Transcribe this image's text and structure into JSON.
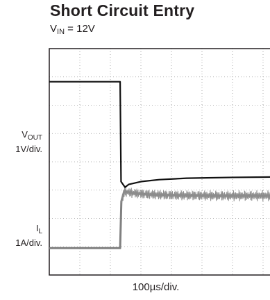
{
  "chart_data": {
    "type": "line",
    "title": "Short Circuit Entry",
    "subtitle": {
      "symbol": "V",
      "subscript": "IN",
      "text": " = 12V"
    },
    "xlabel": "100µs/div.",
    "x_divisions": 8,
    "y_divisions": 8,
    "grid": true,
    "x_unit": "div",
    "xlim": [
      0,
      8
    ],
    "channels": [
      {
        "name": "VOUT",
        "symbol": "V",
        "subscript": "OUT",
        "scale": "1V/div.",
        "color": "#111111"
      },
      {
        "name": "IL",
        "symbol": "I",
        "subscript": "L",
        "scale": "1A/div.",
        "color": "#808080"
      }
    ],
    "series": [
      {
        "name": "VOUT",
        "x": [
          0,
          2.32,
          2.35,
          2.48,
          2.6,
          3.0,
          3.6,
          4.5,
          6.0,
          8.0
        ],
        "y": [
          6.83,
          6.83,
          3.3,
          3.1,
          3.2,
          3.3,
          3.37,
          3.42,
          3.45,
          3.47
        ]
      },
      {
        "name": "IL",
        "x": [
          0,
          2.32,
          2.36,
          2.45,
          2.7,
          3.2,
          4.0,
          5.5,
          8.0
        ],
        "y": [
          0.95,
          0.95,
          2.6,
          2.95,
          2.9,
          2.85,
          2.82,
          2.8,
          2.8
        ]
      }
    ]
  }
}
